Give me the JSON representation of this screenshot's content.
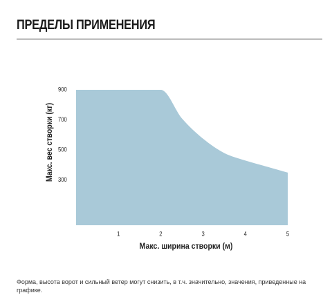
{
  "page": {
    "title": "ПРЕДЕЛЫ ПРИМЕНЕНИЯ",
    "footnote": "Форма, высота ворот и сильный ветер могут снизить, в т.ч. значительно, значения, приведенные на графике."
  },
  "chart_data": {
    "type": "area",
    "xlabel": "Макс. ширина створки (м)",
    "ylabel": "Макс. вес створки (кг)",
    "xlim": [
      0,
      5
    ],
    "ylim": [
      0,
      900
    ],
    "x_ticks": [
      1,
      2,
      3,
      4,
      5
    ],
    "y_ticks": [
      300,
      500,
      700,
      900
    ],
    "grid": false,
    "fill_color": "#a9c9d8",
    "series": [
      {
        "x": [
          0,
          2,
          2.5,
          3,
          3.5,
          4,
          4.5,
          5
        ],
        "values": [
          900,
          900,
          710,
          575,
          480,
          430,
          390,
          350
        ]
      }
    ]
  }
}
